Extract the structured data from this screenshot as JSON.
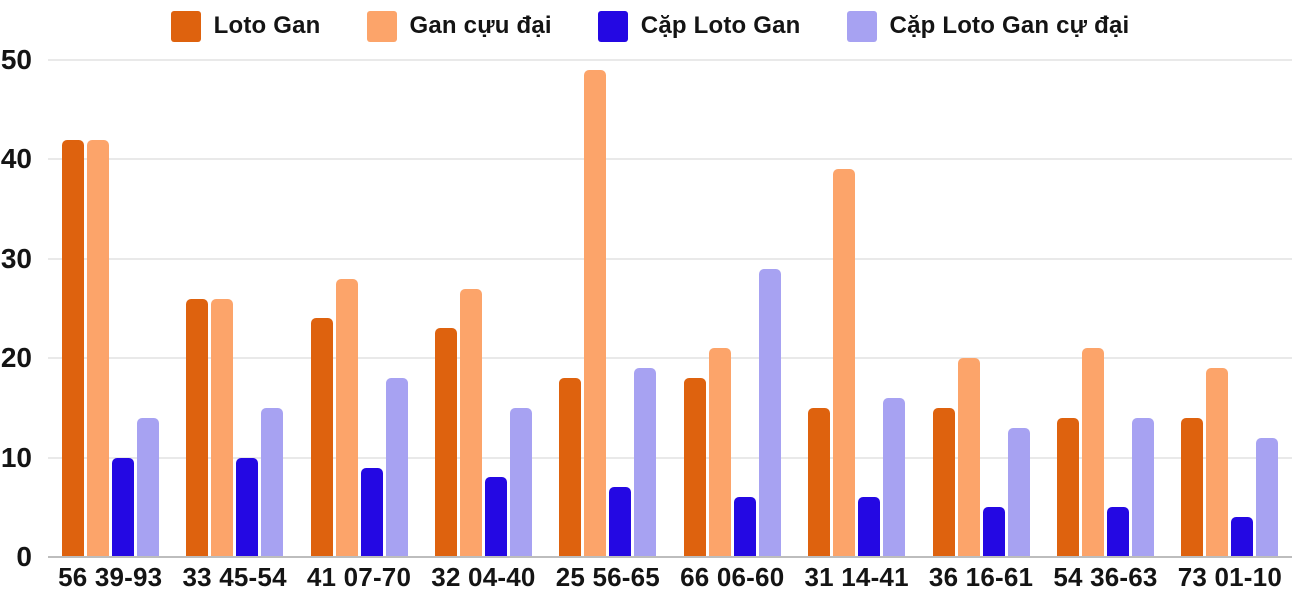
{
  "chart_data": {
    "type": "bar",
    "title": "",
    "xlabel": "",
    "ylabel": "",
    "ylim": [
      0,
      50
    ],
    "y_ticks": [
      0,
      10,
      20,
      30,
      40,
      50
    ],
    "grid": true,
    "legend_position": "top",
    "categories": [
      "56 39-93",
      "33 45-54",
      "41 07-70",
      "32 04-40",
      "25 56-65",
      "66 06-60",
      "31 14-41",
      "36 16-61",
      "54 36-63",
      "73 01-10"
    ],
    "series": [
      {
        "name": "Loto Gan",
        "color": "#DE620E",
        "values": [
          42,
          26,
          24,
          23,
          18,
          18,
          15,
          15,
          14,
          14
        ]
      },
      {
        "name": "Gan cựu đại",
        "color": "#FCA46A",
        "values": [
          42,
          26,
          28,
          27,
          49,
          21,
          39,
          20,
          21,
          19
        ]
      },
      {
        "name": "Cặp Loto Gan",
        "color": "#2408E3",
        "values": [
          10,
          10,
          9,
          8,
          7,
          6,
          6,
          5,
          5,
          4
        ]
      },
      {
        "name": "Cặp Loto Gan cự đại",
        "color": "#A7A2F2",
        "values": [
          14,
          15,
          18,
          15,
          19,
          29,
          16,
          13,
          14,
          12
        ]
      }
    ]
  }
}
